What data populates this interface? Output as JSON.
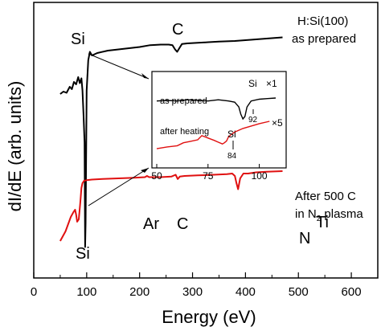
{
  "chart_data": {
    "type": "line",
    "xlabel": "Energy (eV)",
    "ylabel": "dI/dE (arb. units)",
    "xlim": [
      0,
      650
    ],
    "xticks": [
      "0",
      "100",
      "200",
      "300",
      "400",
      "500",
      "600"
    ],
    "y_tick_labels": "none",
    "grid": false,
    "series": [
      {
        "name": "H:Si(100) as prepared",
        "color": "#000000",
        "labels": [
          "H:Si(100)",
          "as prepared"
        ],
        "x": [
          50,
          56,
          62,
          68,
          72,
          76,
          80,
          84,
          87,
          90,
          92,
          94,
          96,
          97,
          98,
          100,
          103,
          106,
          110,
          120,
          140,
          160,
          180,
          200,
          220,
          240,
          255,
          262,
          267,
          271,
          275,
          280,
          290,
          310,
          330,
          350,
          380,
          410,
          440,
          470
        ],
        "y": [
          0.52,
          0.54,
          0.53,
          0.58,
          0.56,
          0.62,
          0.6,
          0.66,
          0.61,
          0.65,
          0.55,
          0.35,
          0.12,
          -0.75,
          -0.55,
          0.55,
          0.8,
          0.87,
          0.84,
          0.86,
          0.88,
          0.89,
          0.9,
          0.91,
          0.925,
          0.93,
          0.93,
          0.925,
          0.89,
          0.87,
          0.9,
          0.935,
          0.94,
          0.945,
          0.95,
          0.955,
          0.96,
          0.97,
          0.98,
          0.99
        ]
      },
      {
        "name": "After 500 C in N2 plasma",
        "color": "#e01010",
        "labels": [
          "After 500 C",
          "in N",
          "2",
          " plasma"
        ],
        "x": [
          50,
          55,
          60,
          65,
          70,
          75,
          78,
          80,
          82,
          85,
          88,
          90,
          92,
          95,
          100,
          110,
          130,
          160,
          190,
          210,
          214,
          218,
          240,
          260,
          268,
          272,
          276,
          285,
          310,
          340,
          365,
          375,
          380,
          383,
          386,
          390,
          396,
          405,
          420,
          440,
          470
        ],
        "y": [
          -0.7,
          -0.66,
          -0.62,
          -0.56,
          -0.5,
          -0.46,
          -0.44,
          -0.48,
          -0.54,
          -0.52,
          -0.38,
          -0.26,
          -0.22,
          -0.2,
          -0.195,
          -0.19,
          -0.185,
          -0.18,
          -0.175,
          -0.17,
          -0.16,
          -0.17,
          -0.17,
          -0.165,
          -0.15,
          -0.185,
          -0.165,
          -0.16,
          -0.155,
          -0.15,
          -0.145,
          -0.14,
          -0.16,
          -0.22,
          -0.27,
          -0.18,
          -0.14,
          -0.14,
          -0.13,
          -0.125,
          -0.12
        ]
      }
    ],
    "annotations": [
      {
        "text": "Si",
        "near_x": 97,
        "trace": "H:Si(100) as prepared"
      },
      {
        "text": "C",
        "near_x": 271,
        "trace": "H:Si(100) as prepared"
      },
      {
        "text": "Si",
        "near_x": 92,
        "trace": "After 500 C in N2 plasma"
      },
      {
        "text": "Ar",
        "near_x": 215,
        "trace": "After 500 C in N2 plasma"
      },
      {
        "text": "C",
        "near_x": 272,
        "trace": "After 500 C in N2 plasma"
      },
      {
        "text": "N",
        "near_x": 385,
        "trace": "After 500 C in N2 plasma"
      },
      {
        "text": "Ti",
        "near_x": 410,
        "trace": "After 500 C in N2 plasma"
      }
    ],
    "inset": {
      "xlim": [
        50,
        108
      ],
      "xticks": [
        "50",
        "75",
        "100"
      ],
      "series": [
        {
          "name": "as prepared",
          "color": "#000000",
          "label": "as prepared",
          "multiplier": "×1",
          "edge_label": "Si",
          "edge_value": "92",
          "x": [
            50,
            55,
            60,
            65,
            70,
            75,
            80,
            85,
            88,
            90,
            91,
            92,
            93,
            94,
            96,
            100,
            104,
            108
          ],
          "y": [
            0.6,
            0.61,
            0.6,
            0.62,
            0.61,
            0.6,
            0.62,
            0.6,
            0.58,
            0.5,
            0.38,
            0.3,
            0.34,
            0.5,
            0.6,
            0.63,
            0.64,
            0.65
          ]
        },
        {
          "name": "after heating",
          "color": "#e01010",
          "label": "after heating",
          "multiplier": "×5",
          "edge_label": "Si",
          "edge_value": "84",
          "x": [
            50,
            55,
            60,
            63,
            66,
            70,
            72,
            75,
            78,
            80,
            82,
            83,
            84,
            85,
            86,
            88,
            92,
            96,
            100,
            105
          ],
          "y": [
            -0.2,
            -0.17,
            -0.15,
            -0.1,
            -0.08,
            -0.05,
            0.02,
            -0.02,
            -0.06,
            -0.09,
            -0.12,
            -0.1,
            -0.07,
            0.0,
            0.03,
            0.08,
            0.14,
            0.18,
            0.22,
            0.26
          ]
        }
      ]
    }
  }
}
